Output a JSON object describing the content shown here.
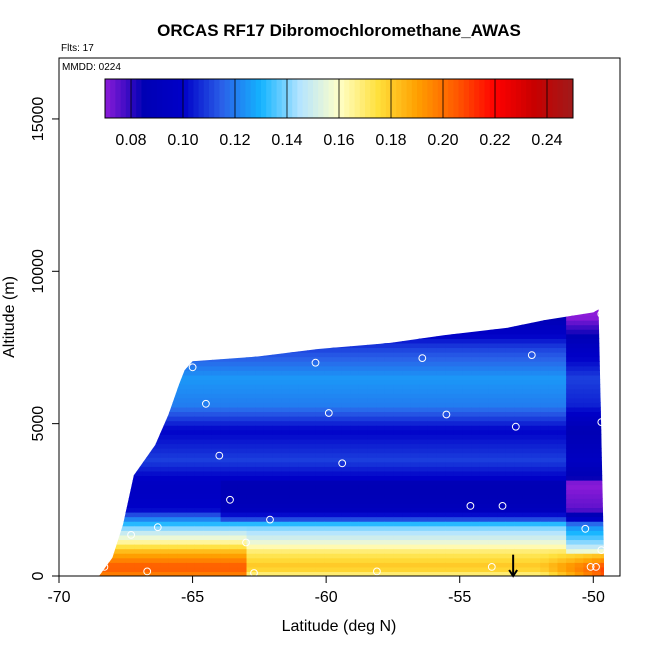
{
  "chart_data": {
    "type": "heatmap",
    "title": "ORCAS RF17 Dibromochloromethane_AWAS",
    "flights_label": "Flts: 17",
    "date_label": "MMDD: 0224",
    "xlabel": "Latitude (deg N)",
    "ylabel": "Altitude (m)",
    "xlim": [
      -70,
      -49
    ],
    "ylim": [
      0,
      17000
    ],
    "x_ticks": [
      -70,
      -65,
      -60,
      -55,
      -50
    ],
    "x_tick_labels": [
      "-70",
      "-65",
      "-60",
      "-55",
      "-50"
    ],
    "y_ticks": [
      0,
      5000,
      10000,
      15000
    ],
    "y_tick_labels": [
      "0",
      "5000",
      "10000",
      "15000"
    ],
    "colorbar": {
      "min": 0.07,
      "max": 0.25,
      "ticks": [
        0.08,
        0.1,
        0.12,
        0.14,
        0.16,
        0.18,
        0.2,
        0.22,
        0.24
      ],
      "tick_labels": [
        "0.08",
        "0.10",
        "0.12",
        "0.14",
        "0.16",
        "0.18",
        "0.20",
        "0.22",
        "0.24"
      ],
      "colors": [
        "#8c1bd8",
        "#0000b4",
        "#0000c8",
        "#2a60e8",
        "#14b4ff",
        "#b4e4ff",
        "#ffffc8",
        "#ffe03c",
        "#ffa000",
        "#ff5a00",
        "#ff0000",
        "#c80000",
        "#a01a1a"
      ]
    },
    "top_envelope": [
      [
        -68.5,
        0
      ],
      [
        -68.0,
        600
      ],
      [
        -67.6,
        1700
      ],
      [
        -67.2,
        3300
      ],
      [
        -66.4,
        4300
      ],
      [
        -65.9,
        5300
      ],
      [
        -65.5,
        6300
      ],
      [
        -65.3,
        6750
      ],
      [
        -65.0,
        7050
      ],
      [
        -62.6,
        7200
      ],
      [
        -60.3,
        7450
      ],
      [
        -57.6,
        7650
      ],
      [
        -55.6,
        7900
      ],
      [
        -53.2,
        8150
      ],
      [
        -51.8,
        8400
      ],
      [
        -50.0,
        8650
      ],
      [
        -49.8,
        8750
      ],
      [
        -49.6,
        600
      ],
      [
        -49.6,
        0
      ]
    ],
    "mean_profile": [
      {
        "alt": 0,
        "value": 0.175
      },
      {
        "alt": 300,
        "value": 0.19
      },
      {
        "alt": 800,
        "value": 0.175
      },
      {
        "alt": 1200,
        "value": 0.155
      },
      {
        "alt": 1600,
        "value": 0.14
      },
      {
        "alt": 2200,
        "value": 0.1
      },
      {
        "alt": 3000,
        "value": 0.095
      },
      {
        "alt": 3800,
        "value": 0.11
      },
      {
        "alt": 4800,
        "value": 0.1
      },
      {
        "alt": 5600,
        "value": 0.12
      },
      {
        "alt": 6500,
        "value": 0.125
      },
      {
        "alt": 7500,
        "value": 0.11
      },
      {
        "alt": 8500,
        "value": 0.085
      }
    ],
    "sample_points": [
      {
        "lat": -68.3,
        "alt": 300
      },
      {
        "lat": -67.9,
        "alt": 1450
      },
      {
        "lat": -67.3,
        "alt": 1350
      },
      {
        "lat": -67.1,
        "alt": 3800
      },
      {
        "lat": -66.7,
        "alt": 150
      },
      {
        "lat": -66.3,
        "alt": 1600
      },
      {
        "lat": -65.0,
        "alt": 6850
      },
      {
        "lat": -64.5,
        "alt": 5650
      },
      {
        "lat": -64.0,
        "alt": 3950
      },
      {
        "lat": -63.6,
        "alt": 2500
      },
      {
        "lat": -63.0,
        "alt": 1100
      },
      {
        "lat": -62.7,
        "alt": 100
      },
      {
        "lat": -62.1,
        "alt": 1850
      },
      {
        "lat": -60.4,
        "alt": 7000
      },
      {
        "lat": -59.9,
        "alt": 5350
      },
      {
        "lat": -59.4,
        "alt": 3700
      },
      {
        "lat": -58.1,
        "alt": 150
      },
      {
        "lat": -56.4,
        "alt": 7150
      },
      {
        "lat": -55.5,
        "alt": 5300
      },
      {
        "lat": -54.6,
        "alt": 2300
      },
      {
        "lat": -53.8,
        "alt": 300
      },
      {
        "lat": -53.4,
        "alt": 2300
      },
      {
        "lat": -52.9,
        "alt": 4900
      },
      {
        "lat": -52.3,
        "alt": 7250
      },
      {
        "lat": -50.3,
        "alt": 1550
      },
      {
        "lat": -50.1,
        "alt": 300
      },
      {
        "lat": -49.9,
        "alt": 300
      },
      {
        "lat": -49.7,
        "alt": 5050
      },
      {
        "lat": -49.7,
        "alt": 8600
      },
      {
        "lat": -49.7,
        "alt": 850
      }
    ],
    "marker_arrow": {
      "lat": -53.0,
      "alt_from": 700,
      "alt_to": 0
    }
  }
}
